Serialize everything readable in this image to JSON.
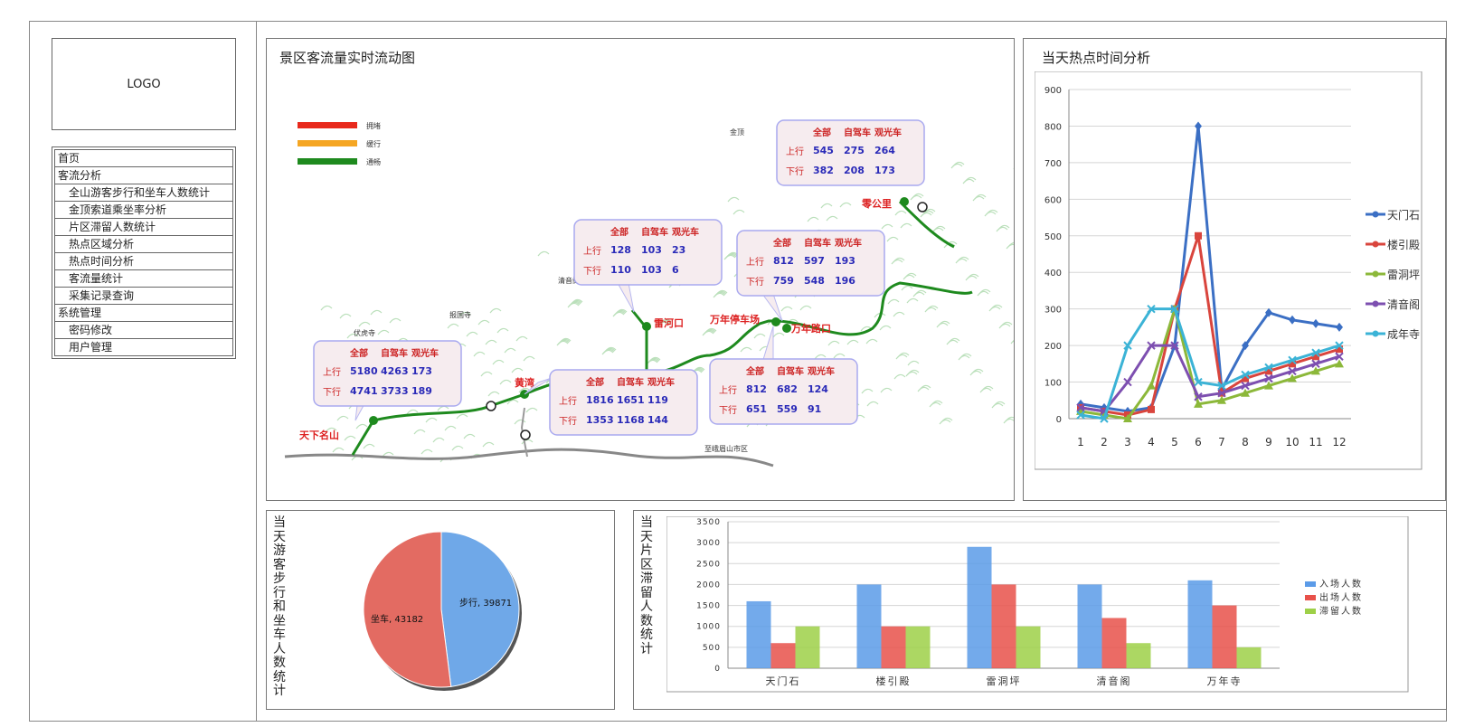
{
  "logo": "LOGO",
  "menu": [
    {
      "label": "首页",
      "sub": false
    },
    {
      "label": "客流分析",
      "sub": false
    },
    {
      "label": "全山游客步行和坐车人数统计",
      "sub": true
    },
    {
      "label": "金顶索道乘坐率分析",
      "sub": true
    },
    {
      "label": "片区滞留人数统计",
      "sub": true
    },
    {
      "label": "热点区域分析",
      "sub": true
    },
    {
      "label": "热点时间分析",
      "sub": true
    },
    {
      "label": "客流量统计",
      "sub": true
    },
    {
      "label": "采集记录查询",
      "sub": true
    },
    {
      "label": "系统管理",
      "sub": false
    },
    {
      "label": "密码修改",
      "sub": true
    },
    {
      "label": "用户管理",
      "sub": true
    }
  ],
  "map_panel": {
    "title": "景区客流量实时流动图",
    "legend": [
      {
        "label": "拥堵",
        "color": "#e8291c"
      },
      {
        "label": "缓行",
        "color": "#f5a623"
      },
      {
        "label": "通畅",
        "color": "#1e8a1e"
      }
    ],
    "col_headers": [
      "全部",
      "自驾车",
      "观光车"
    ],
    "row_up": "上行",
    "row_down": "下行",
    "boxes": [
      {
        "up": [
          "5180",
          "4263",
          "173"
        ],
        "down": [
          "4741",
          "3733",
          "189"
        ]
      },
      {
        "up": [
          "1816",
          "1651",
          "119"
        ],
        "down": [
          "1353",
          "1168",
          "144"
        ]
      },
      {
        "up": [
          "128",
          "103",
          "23"
        ],
        "down": [
          "110",
          "103",
          "6"
        ]
      },
      {
        "up": [
          "812",
          "682",
          "124"
        ],
        "down": [
          "651",
          "559",
          "91"
        ]
      },
      {
        "up": [
          "812",
          "597",
          "193"
        ],
        "down": [
          "759",
          "548",
          "196"
        ]
      },
      {
        "up": [
          "545",
          "275",
          "264"
        ],
        "down": [
          "382",
          "208",
          "173"
        ]
      }
    ],
    "places": [
      "天下名山",
      "黄湾",
      "雷河口",
      "万年停车场",
      "万年路口",
      "零公里",
      "清音阁",
      "报国寺",
      "伏虎寺",
      "金顶",
      "至峨眉山市区"
    ]
  },
  "hot_time_panel": {
    "title": "当天热点时间分析",
    "chart_data": {
      "type": "line",
      "x": [
        "1",
        "2",
        "3",
        "4",
        "5",
        "6",
        "7",
        "8",
        "9",
        "10",
        "11",
        "12"
      ],
      "ylim": [
        0,
        900
      ],
      "yticks": [
        "0",
        "100",
        "200",
        "300",
        "400",
        "500",
        "600",
        "700",
        "800",
        "900"
      ],
      "legend_position": "right",
      "series": [
        {
          "name": "天门石",
          "color": "#3b6fc4",
          "values": [
            40,
            30,
            20,
            30,
            200,
            800,
            80,
            200,
            290,
            270,
            260,
            250
          ]
        },
        {
          "name": "楼引殿",
          "color": "#d9453d",
          "values": [
            30,
            20,
            10,
            25,
            300,
            500,
            70,
            110,
            130,
            150,
            170,
            190
          ]
        },
        {
          "name": "雷洞坪",
          "color": "#8cb83a",
          "values": [
            20,
            10,
            0,
            90,
            300,
            40,
            50,
            70,
            90,
            110,
            130,
            150
          ]
        },
        {
          "name": "清音阁",
          "color": "#7d4fb0",
          "values": [
            30,
            20,
            100,
            200,
            200,
            60,
            70,
            90,
            110,
            130,
            150,
            170
          ]
        },
        {
          "name": "成年寺",
          "color": "#3bb3d6",
          "values": [
            10,
            0,
            200,
            300,
            300,
            100,
            90,
            120,
            140,
            160,
            180,
            200
          ]
        }
      ]
    }
  },
  "pie_panel": {
    "title": "当天游客步行和坐车人数统计",
    "chart_data": {
      "type": "pie",
      "slices": [
        {
          "label": "步行",
          "value": 39871,
          "color": "#6fa8e8"
        },
        {
          "label": "坐车",
          "value": 43182,
          "color": "#e36b62"
        }
      ],
      "data_labels": [
        "步行, 39871",
        "坐车, 43182"
      ]
    }
  },
  "bar_panel": {
    "title": "当天片区滞留人数统计",
    "chart_data": {
      "type": "bar",
      "categories": [
        "天门石",
        "楼引殿",
        "雷洞坪",
        "清音阁",
        "万年寺"
      ],
      "ylim": [
        0,
        3500
      ],
      "yticks": [
        "0",
        "500",
        "1000",
        "1500",
        "2000",
        "2500",
        "3000",
        "3500"
      ],
      "legend_position": "right",
      "series": [
        {
          "name": "入场人数",
          "color": "#5b9be8",
          "values": [
            1600,
            2000,
            2900,
            2000,
            2100
          ]
        },
        {
          "name": "出场人数",
          "color": "#e8514a",
          "values": [
            600,
            1000,
            2000,
            1200,
            1500
          ]
        },
        {
          "name": "滞留人数",
          "color": "#9ed048",
          "values": [
            1000,
            1000,
            1000,
            600,
            500
          ]
        }
      ]
    }
  }
}
